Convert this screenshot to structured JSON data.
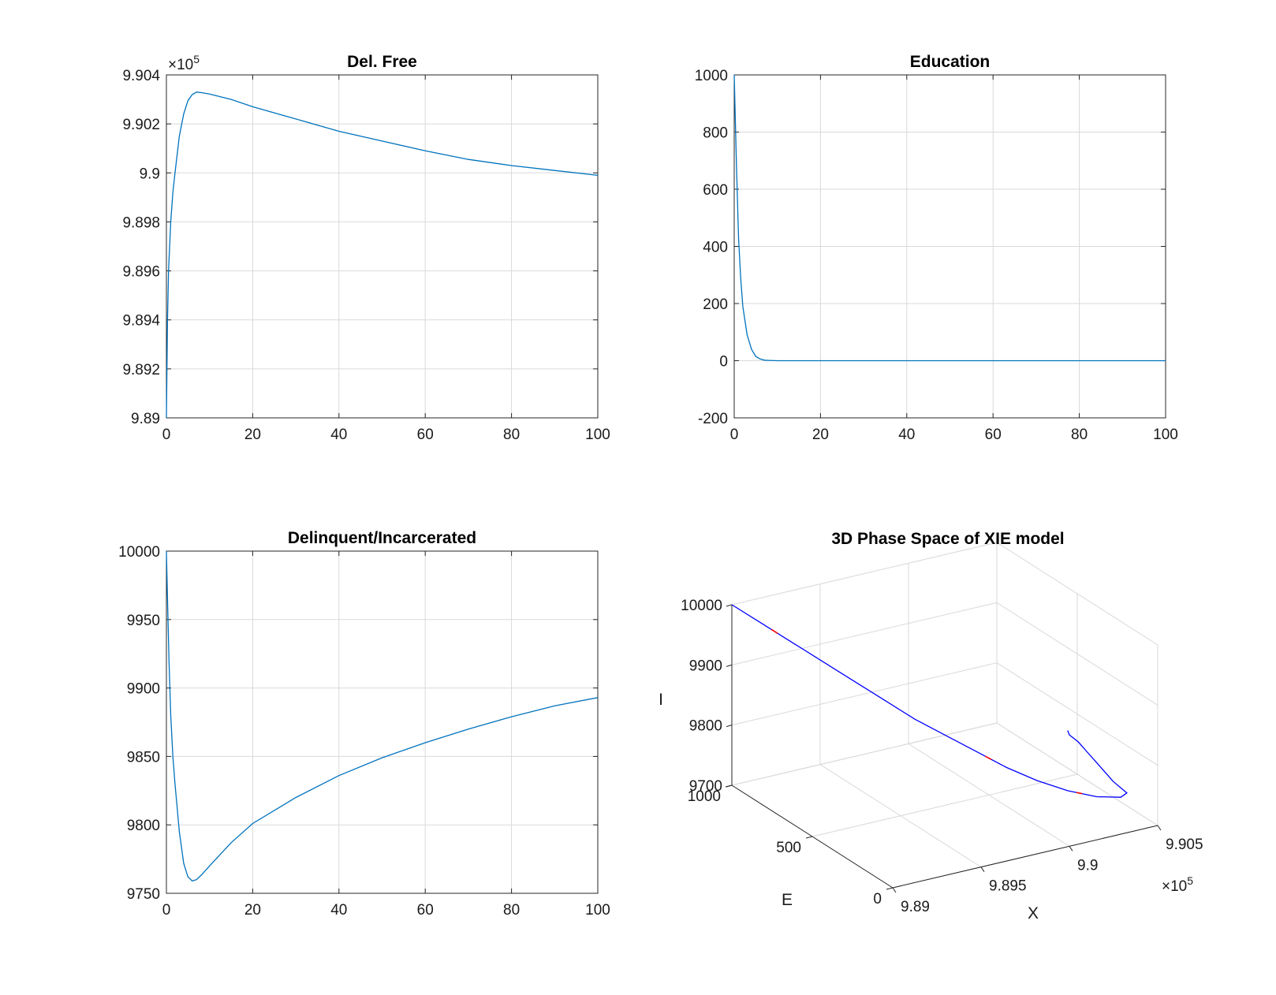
{
  "chart_data": [
    {
      "type": "line",
      "title": "Del. Free",
      "xlabel": "",
      "ylabel": "",
      "xlim": [
        0,
        100
      ],
      "ylim": [
        989000,
        990400
      ],
      "x_ticks": [
        0,
        20,
        40,
        60,
        80,
        100
      ],
      "x_tick_labels": [
        "0",
        "20",
        "40",
        "60",
        "80",
        "100"
      ],
      "y_ticks": [
        989000,
        989200,
        989400,
        989600,
        989800,
        990000,
        990200,
        990400
      ],
      "y_tick_labels": [
        "9.89",
        "9.892",
        "9.894",
        "9.896",
        "9.898",
        "9.9",
        "9.902",
        "9.904"
      ],
      "y_exponent": {
        "base": "×10",
        "power": "5"
      },
      "grid": true,
      "series": [
        {
          "color": "#0072BD",
          "x": [
            0,
            0.25,
            0.5,
            1,
            1.5,
            2,
            3,
            4,
            5,
            6,
            7,
            8,
            10,
            15,
            20,
            30,
            40,
            50,
            60,
            70,
            80,
            90,
            100
          ],
          "y": [
            989000,
            989400,
            989600,
            989800,
            989920,
            990000,
            990150,
            990240,
            990295,
            990320,
            990330,
            990328,
            990322,
            990300,
            990270,
            990220,
            990170,
            990130,
            990090,
            990055,
            990030,
            990010,
            989990
          ]
        }
      ]
    },
    {
      "type": "line",
      "title": "Education",
      "xlabel": "",
      "ylabel": "",
      "xlim": [
        0,
        100
      ],
      "ylim": [
        -200,
        1000
      ],
      "x_ticks": [
        0,
        20,
        40,
        60,
        80,
        100
      ],
      "x_tick_labels": [
        "0",
        "20",
        "40",
        "60",
        "80",
        "100"
      ],
      "y_ticks": [
        -200,
        0,
        200,
        400,
        600,
        800,
        1000
      ],
      "y_tick_labels": [
        "-200",
        "0",
        "200",
        "400",
        "600",
        "800",
        "1000"
      ],
      "grid": true,
      "series": [
        {
          "color": "#0072BD",
          "x": [
            0,
            0.5,
            1,
            1.5,
            2,
            3,
            4,
            5,
            6,
            7,
            8,
            10,
            15,
            20,
            40,
            60,
            80,
            100
          ],
          "y": [
            1000,
            700,
            430,
            290,
            190,
            90,
            40,
            15,
            6,
            2,
            1,
            0,
            0,
            0,
            0,
            0,
            0,
            0
          ]
        }
      ]
    },
    {
      "type": "line",
      "title": "Delinquent/Incarcerated",
      "xlabel": "",
      "ylabel": "",
      "xlim": [
        0,
        100
      ],
      "ylim": [
        9750,
        10000
      ],
      "x_ticks": [
        0,
        20,
        40,
        60,
        80,
        100
      ],
      "x_tick_labels": [
        "0",
        "20",
        "40",
        "60",
        "80",
        "100"
      ],
      "y_ticks": [
        9750,
        9800,
        9850,
        9900,
        9950,
        10000
      ],
      "y_tick_labels": [
        "9750",
        "9800",
        "9850",
        "9900",
        "9950",
        "10000"
      ],
      "grid": true,
      "series": [
        {
          "color": "#0072BD",
          "x": [
            0,
            0.3,
            0.6,
            1,
            1.5,
            2,
            3,
            4,
            5,
            6,
            7,
            8,
            10,
            15,
            20,
            30,
            40,
            50,
            60,
            70,
            80,
            90,
            100
          ],
          "y": [
            10000,
            9960,
            9920,
            9880,
            9850,
            9830,
            9795,
            9772,
            9762,
            9759,
            9760,
            9763,
            9770,
            9787,
            9801,
            9820,
            9836,
            9849,
            9860,
            9870,
            9879,
            9887,
            9893
          ]
        }
      ]
    },
    {
      "type": "line",
      "title": "3D Phase Space of XIE model",
      "xlabel": "X",
      "ylabel": "E",
      "zlabel": "I",
      "xlim": [
        989000,
        990500
      ],
      "ylim": [
        0,
        1000
      ],
      "zlim": [
        9700,
        10000
      ],
      "x_ticks": [
        989000,
        989500,
        990000,
        990500
      ],
      "x_tick_labels": [
        "9.89",
        "9.895",
        "9.9",
        "9.905"
      ],
      "x_exponent": {
        "base": "×10",
        "power": "5"
      },
      "y_ticks": [
        0,
        500,
        1000
      ],
      "y_tick_labels": [
        "0",
        "500",
        "1000"
      ],
      "z_ticks": [
        9700,
        9800,
        9900,
        10000
      ],
      "z_tick_labels": [
        "9700",
        "9800",
        "9900",
        "10000"
      ],
      "grid": true,
      "series": [
        {
          "color": "#0000FF",
          "x": [
            989000,
            989100,
            989200,
            989300,
            989400,
            989500,
            989600,
            989700,
            989800,
            989900,
            990000,
            990100,
            990200,
            990300,
            990330,
            990250,
            990200,
            990150,
            990100,
            990050,
            990000,
            989990
          ],
          "y": [
            1000,
            920,
            840,
            760,
            680,
            600,
            520,
            440,
            360,
            280,
            200,
            120,
            50,
            10,
            5,
            2,
            1,
            0.5,
            0.3,
            0.2,
            0.1,
            0
          ],
          "z": [
            10000,
            9975,
            9950,
            9925,
            9900,
            9875,
            9850,
            9830,
            9810,
            9790,
            9775,
            9765,
            9760,
            9759,
            9765,
            9790,
            9810,
            9830,
            9850,
            9870,
            9885,
            9893
          ]
        }
      ],
      "highlight_color": "#FF0000"
    }
  ]
}
